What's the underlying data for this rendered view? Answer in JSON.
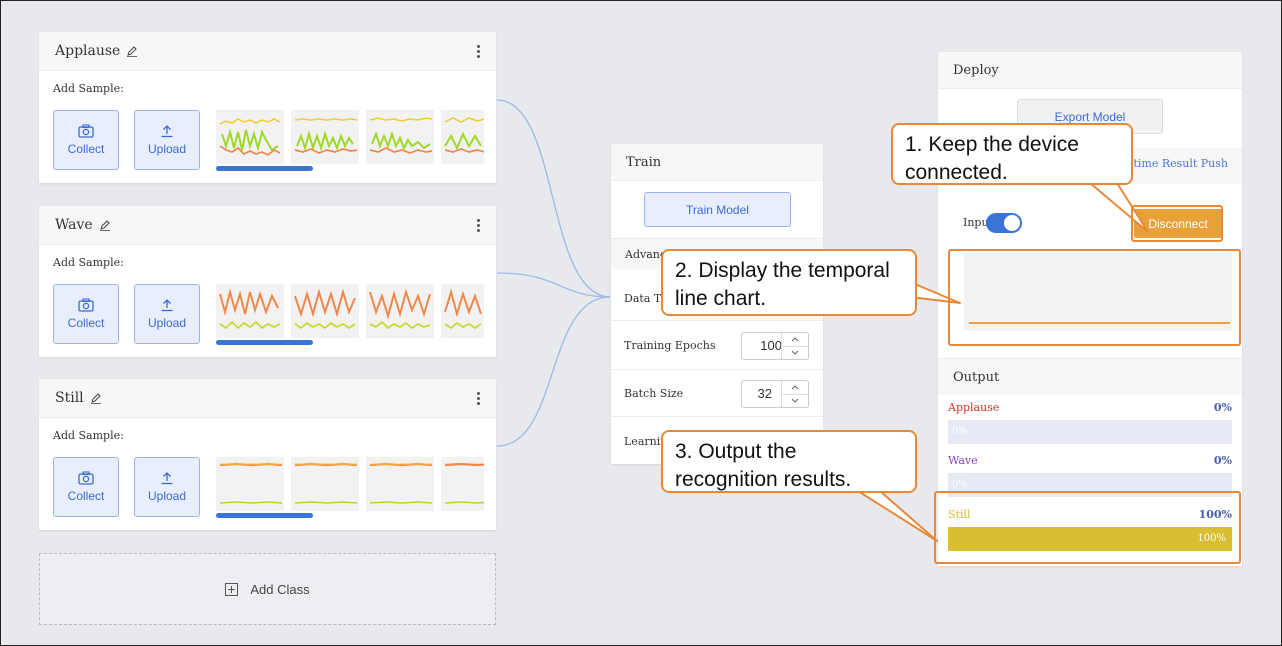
{
  "classes": [
    {
      "name": "Applause",
      "add_sample": "Add Sample:",
      "collect": "Collect",
      "upload": "Upload"
    },
    {
      "name": "Wave",
      "add_sample": "Add Sample:",
      "collect": "Collect",
      "upload": "Upload"
    },
    {
      "name": "Still",
      "add_sample": "Add Sample:",
      "collect": "Collect",
      "upload": "Upload"
    }
  ],
  "add_class": "Add Class",
  "train": {
    "title": "Train",
    "button": "Train Model",
    "advanced": "Advanced",
    "data_time": "Data Time",
    "epochs_label": "Training Epochs",
    "epochs_value": "100",
    "batch_label": "Batch Size",
    "batch_value": "32",
    "lr_label": "Learning Rate"
  },
  "deploy": {
    "title": "Deploy",
    "export": "Export Model",
    "push": "Real-time Result Push",
    "input": "Input",
    "disconnect": "Disconnect"
  },
  "output": {
    "title": "Output",
    "rows": [
      {
        "label": "Applause",
        "pct": "0%",
        "bar_text": "0%",
        "value": 0,
        "color": "#d0302f"
      },
      {
        "label": "Wave",
        "pct": "0%",
        "bar_text": "0%",
        "value": 0,
        "color": "#8a3fc5"
      },
      {
        "label": "Still",
        "pct": "100%",
        "bar_text": "100%",
        "value": 1,
        "color": "#d8be32"
      }
    ]
  },
  "callouts": {
    "c1": "1. Keep the device connected.",
    "c2": "2. Display the temporal line chart.",
    "c3": "3. Output the recognition results."
  },
  "colors": {
    "accent": "#3a75d6",
    "annotation": "#e8893a",
    "disconnect": "#e8a13a",
    "still_bar": "#d8be32"
  }
}
